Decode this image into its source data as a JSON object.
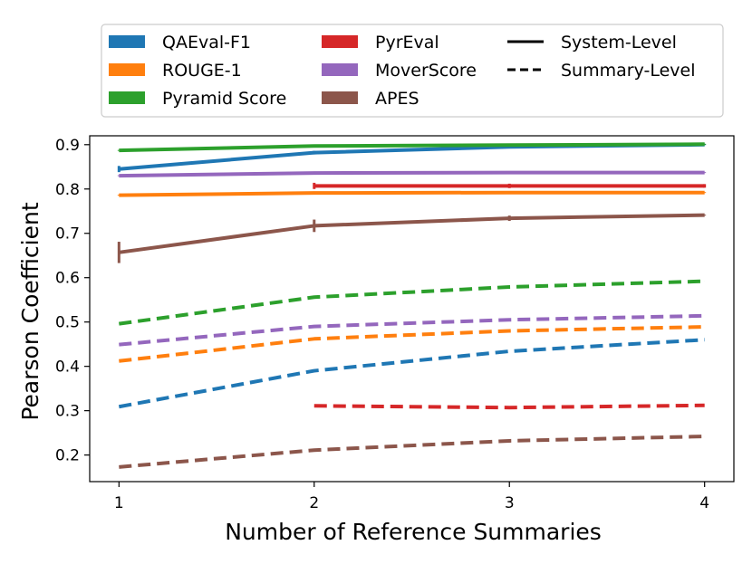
{
  "chart_data": {
    "type": "line",
    "xlabel": "Number of Reference Summaries",
    "ylabel": "Pearson Coefficient",
    "x_ticks": [
      1,
      2,
      3,
      4
    ],
    "y_ticks": [
      0.2,
      0.3,
      0.4,
      0.5,
      0.6,
      0.7,
      0.8,
      0.9
    ],
    "xlim": [
      0.85,
      4.15
    ],
    "ylim": [
      0.14,
      0.92
    ],
    "grid": false,
    "legend_position": "top, above plot",
    "line_styles": [
      {
        "name": "System-Level",
        "style": "solid"
      },
      {
        "name": "Summary-Level",
        "style": "dashed"
      }
    ],
    "series": [
      {
        "name": "QAEval-F1",
        "color": "#1f77b4",
        "system": {
          "x": [
            1,
            2,
            3,
            4
          ],
          "values": [
            0.845,
            0.882,
            0.895,
            0.9
          ],
          "err": [
            0.007,
            0.004,
            0.002,
            0.001
          ]
        },
        "summary": {
          "x": [
            1,
            2,
            3,
            4
          ],
          "values": [
            0.309,
            0.39,
            0.434,
            0.46
          ]
        }
      },
      {
        "name": "ROUGE-1",
        "color": "#ff7f0e",
        "system": {
          "x": [
            1,
            2,
            3,
            4
          ],
          "values": [
            0.786,
            0.791,
            0.792,
            0.792
          ],
          "err": [
            0.001,
            0.001,
            0.001,
            0.001
          ]
        },
        "summary": {
          "x": [
            1,
            2,
            3,
            4
          ],
          "values": [
            0.412,
            0.462,
            0.48,
            0.489
          ]
        }
      },
      {
        "name": "Pyramid Score",
        "color": "#2ca02c",
        "system": {
          "x": [
            1,
            2,
            3,
            4
          ],
          "values": [
            0.887,
            0.897,
            0.899,
            0.901
          ],
          "err": [
            0.001,
            0.001,
            0.001,
            0.001
          ]
        },
        "summary": {
          "x": [
            1,
            2,
            3,
            4
          ],
          "values": [
            0.496,
            0.556,
            0.579,
            0.592
          ]
        }
      },
      {
        "name": "PyrEval",
        "color": "#d62728",
        "system": {
          "x": [
            2,
            3,
            4
          ],
          "values": [
            0.807,
            0.807,
            0.807
          ],
          "err": [
            0.007,
            0.005,
            0.004
          ]
        },
        "summary": {
          "x": [
            2,
            3,
            4
          ],
          "values": [
            0.311,
            0.307,
            0.312
          ]
        }
      },
      {
        "name": "MoverScore",
        "color": "#9467bd",
        "system": {
          "x": [
            1,
            2,
            3,
            4
          ],
          "values": [
            0.83,
            0.836,
            0.837,
            0.837
          ],
          "err": [
            0.001,
            0.001,
            0.001,
            0.001
          ]
        },
        "summary": {
          "x": [
            1,
            2,
            3,
            4
          ],
          "values": [
            0.449,
            0.49,
            0.505,
            0.514
          ]
        }
      },
      {
        "name": "APES",
        "color": "#8c564b",
        "system": {
          "x": [
            1,
            2,
            3,
            4
          ],
          "values": [
            0.657,
            0.717,
            0.734,
            0.741
          ],
          "err": [
            0.024,
            0.014,
            0.006,
            0.001
          ]
        },
        "summary": {
          "x": [
            1,
            2,
            3,
            4
          ],
          "values": [
            0.173,
            0.211,
            0.232,
            0.242
          ]
        }
      }
    ]
  }
}
